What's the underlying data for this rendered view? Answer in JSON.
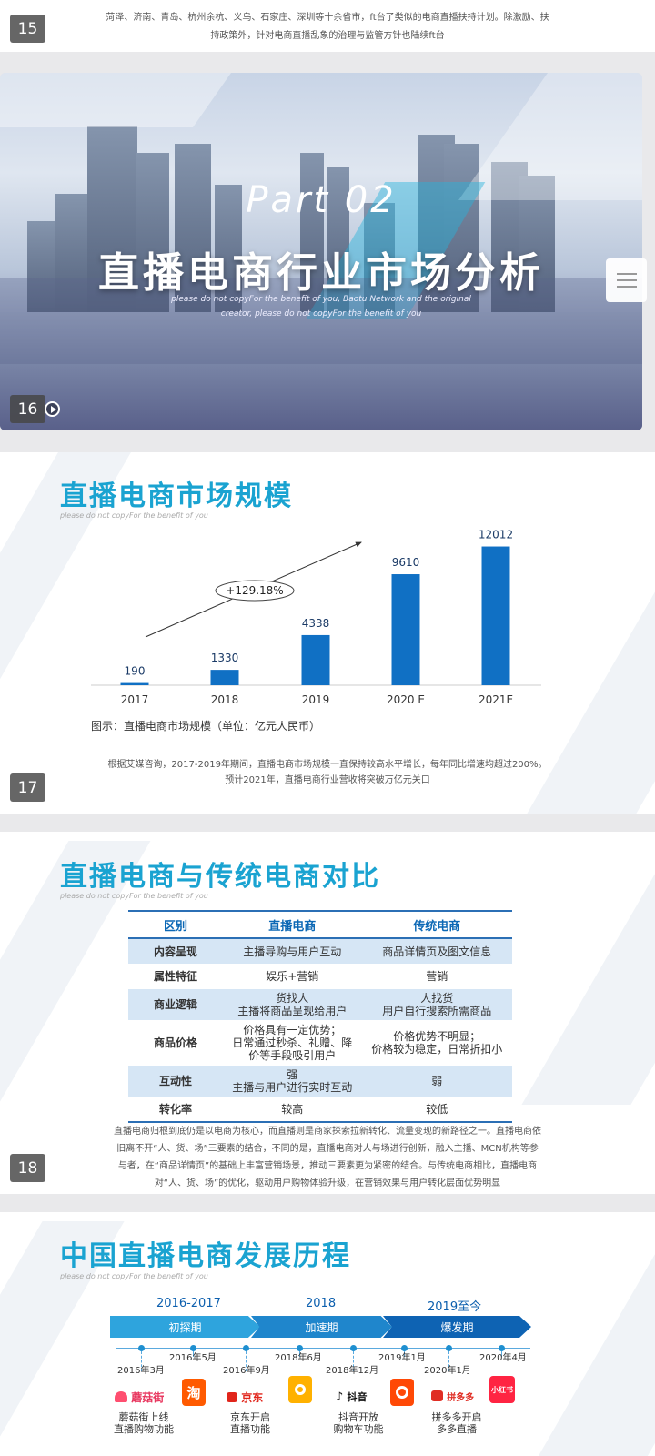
{
  "cards": [
    {
      "slide_number": "15",
      "caption_lines": [
        "菏泽、济南、青岛、杭州余杭、义乌、石家庄、深圳等十余省市，ft台了类似的电商直播扶持计划。除激励、扶",
        "持政策外，针对电商直播乱象的治理与监管方针也陆续ft台"
      ]
    },
    {
      "slide_number": "16",
      "part_label": "Part 02",
      "title": "直播电商行业市场分析",
      "english_lines": [
        "please do not copyFor the benefit of you, Baotu Network and the original",
        "creator,  please do not copyFor the benefit of you"
      ],
      "icons": {
        "play": "play-icon",
        "menu": "menu-icon"
      }
    },
    {
      "slide_number": "17",
      "title": "直播电商市场规模",
      "subtitle": "please do not copyFor the benefit of you",
      "figure_caption": "图示：直播电商市场规模（单位：亿元人民币）",
      "growth_label": "+129.18%",
      "caption_lines": [
        "根据艾媒咨询，2017-2019年期间，直播电商市场规模一直保持较高水平增长，每年同比增速均超过200%。",
        "预计2021年，直播电商行业营收将突破万亿元关口"
      ]
    },
    {
      "slide_number": "18",
      "title": "直播电商与传统电商对比",
      "subtitle": "please do not copyFor the benefit of you",
      "table": {
        "headers": [
          "区别",
          "直播电商",
          "传统电商"
        ],
        "rows": [
          [
            "内容呈现",
            "主播导购与用户互动",
            "商品详情页及图文信息"
          ],
          [
            "属性特征",
            "娱乐+营销",
            "营销"
          ],
          [
            "商业逻辑",
            "货找人\n主播将商品呈现给用户",
            "人找货\n用户自行搜索所需商品"
          ],
          [
            "商品价格",
            "价格具有一定优势；\n日常通过秒杀、礼赠、降\n价等手段吸引用户",
            "价格优势不明显；\n价格较为稳定，日常折扣小"
          ],
          [
            "互动性",
            "强\n主播与用户进行实时互动",
            "弱"
          ],
          [
            "转化率",
            "较高",
            "较低"
          ]
        ]
      },
      "caption_lines": [
        "直播电商归根到底仍是以电商为核心，而直播则是商家探索拉新转化、流量变现的新路径之一。直播电商依",
        "旧离不开“人、货、场”三要素的结合，不同的是，直播电商对人与场进行创新，融入主播、MCN机构等参",
        "与者，在“商品详情页”的基础上丰富营销场景，推动三要素更为紧密的结合。与传统电商相比，直播电商",
        "对“人、货、场”的优化，驱动用户购物体验升级，在营销效果与用户转化层面优势明显"
      ]
    },
    {
      "title": "中国直播电商发展历程",
      "subtitle": "please do not copyFor the benefit of you",
      "phases": [
        {
          "years": "2016-2017",
          "label": "初探期",
          "color": "#2ea4dd"
        },
        {
          "years": "2018",
          "label": "加速期",
          "color": "#1f86cc"
        },
        {
          "years": "2019至今",
          "label": "爆发期",
          "color": "#0e63b3"
        }
      ],
      "dates": [
        "2016年3月",
        "2016年5月",
        "2016年9月",
        "2018年6月",
        "2018年12月",
        "2019年1月",
        "2020年1月",
        "2020年4月"
      ],
      "brands": {
        "mogujie": "蘑菇街",
        "taobao": "淘",
        "jd": "京东",
        "douyin": "抖音",
        "pinduoduo": "拼多多",
        "xiaohongshu": "小红书"
      },
      "events": [
        "蘑菇街上线\n直播购物功能",
        "京东开启\n直播功能",
        "抖音开放\n购物车功能",
        "拼多多开启\n多多直播"
      ]
    }
  ],
  "chart_data": {
    "type": "bar",
    "categories": [
      "2017",
      "2018",
      "2019",
      "2020 E",
      "2021E"
    ],
    "values": [
      190,
      1330,
      4338,
      9610,
      12012
    ],
    "title": "直播电商市场规模",
    "xlabel": "",
    "ylabel": "",
    "ylim": [
      0,
      13000
    ],
    "bar_color": "#1070c4",
    "grid": false
  }
}
